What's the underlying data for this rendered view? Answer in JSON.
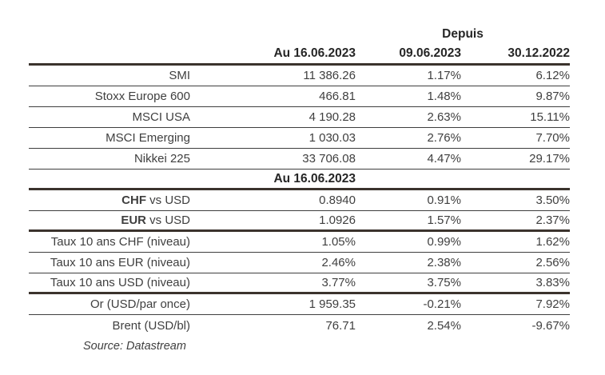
{
  "table": {
    "header": {
      "depuis_label": "Depuis",
      "value_col": "Au 16.06.2023",
      "since_col_1": "09.06.2023",
      "since_col_2": "30.12.2022"
    },
    "rows": [
      {
        "label": "SMI",
        "value": "11 386.26",
        "since_0906": "1.17%",
        "since_3012": "6.12%",
        "line": "thin"
      },
      {
        "label": "Stoxx Europe 600",
        "value": "466.81",
        "since_0906": "1.48%",
        "since_3012": "9.87%",
        "line": "thin"
      },
      {
        "label": "MSCI USA",
        "value": "4 190.28",
        "since_0906": "2.63%",
        "since_3012": "15.11%",
        "line": "thin"
      },
      {
        "label": "MSCI Emerging",
        "value": "1 030.03",
        "since_0906": "2.76%",
        "since_3012": "7.70%",
        "line": "thin"
      },
      {
        "label": "Nikkei 225",
        "value": "33 706.08",
        "since_0906": "4.47%",
        "since_3012": "29.17%",
        "line": "thin"
      },
      {
        "type": "section",
        "label": "Au 16.06.2023",
        "line": "thick"
      },
      {
        "label_bold": "CHF",
        "label_rest": "vs USD",
        "value": "0.8940",
        "since_0906": "0.91%",
        "since_3012": "3.50%",
        "line": "thin"
      },
      {
        "label_bold": "EUR",
        "label_rest": "vs USD",
        "value": "1.0926",
        "since_0906": "1.57%",
        "since_3012": "2.37%",
        "line": "thick"
      },
      {
        "label": "Taux 10 ans CHF (niveau)",
        "value": "1.05%",
        "since_0906": "0.99%",
        "since_3012": "1.62%",
        "line": "thin"
      },
      {
        "label": "Taux 10 ans EUR (niveau)",
        "value": "2.46%",
        "since_0906": "2.38%",
        "since_3012": "2.56%",
        "line": "thin"
      },
      {
        "label": "Taux 10 ans USD (niveau)",
        "value": "3.77%",
        "since_0906": "3.75%",
        "since_3012": "3.83%",
        "line": "thick"
      },
      {
        "label": "Or (USD/par once)",
        "value": "1 959.35",
        "since_0906": "-0.21%",
        "since_3012": "7.92%",
        "line": "thin"
      },
      {
        "label": "Brent (USD/bl)",
        "value": "76.71",
        "since_0906": "2.54%",
        "since_3012": "-9.67%",
        "line": "none"
      }
    ],
    "source_note": "Source: Datastream"
  },
  "colors": {
    "thick_line": "#3b332d",
    "thin_line": "#3e3e3e",
    "body_text": "#3f3f3f",
    "header_text": "#262626",
    "background": "#ffffff"
  }
}
